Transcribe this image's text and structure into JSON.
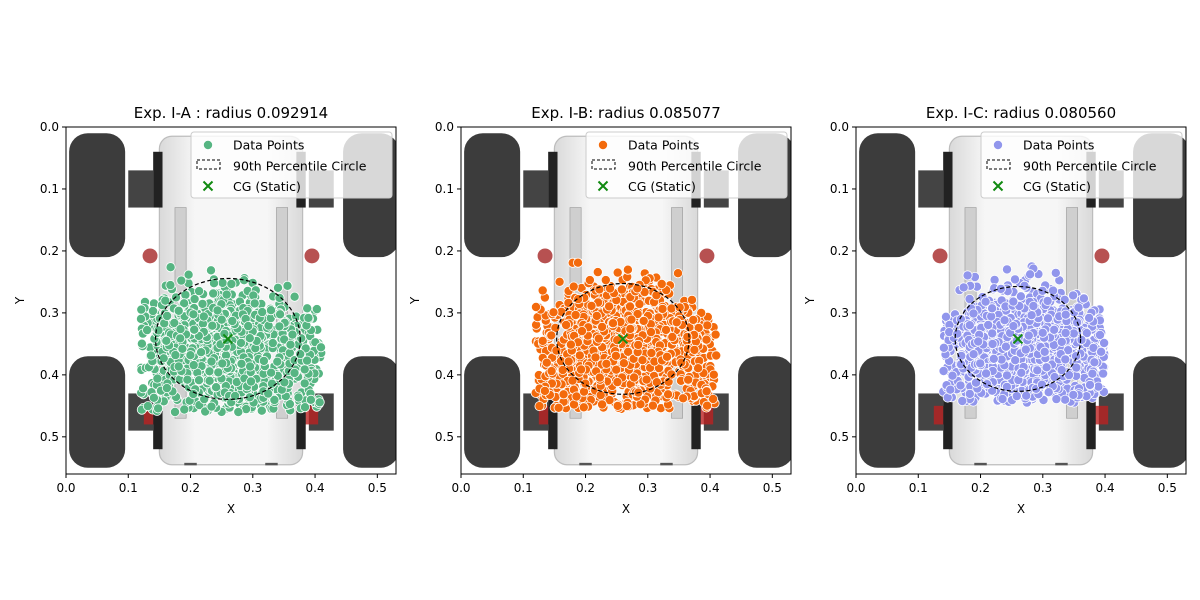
{
  "legend": {
    "data_points": "Data Points",
    "circle": "90th Percentile Circle",
    "cg": "CG (Static)"
  },
  "colors": {
    "cg_marker": "#118a11",
    "circle": "#000000"
  },
  "chart_data": [
    {
      "type": "scatter",
      "title": "Exp. I-A : radius 0.092914",
      "xlabel": "X",
      "ylabel": "Y",
      "xlim": [
        0.0,
        0.53
      ],
      "ylim": [
        0.56,
        0.0
      ],
      "y_inverted": true,
      "xticks": [
        "0.0",
        "0.1",
        "0.2",
        "0.3",
        "0.4",
        "0.5"
      ],
      "yticks": [
        "0.0",
        "0.1",
        "0.2",
        "0.3",
        "0.4",
        "0.5"
      ],
      "color": "#56b582",
      "radius": 0.092914,
      "cg": [
        0.26,
        0.342
      ],
      "cluster": {
        "x_range": [
          0.12,
          0.41
        ],
        "y_range": [
          0.22,
          0.46
        ],
        "center": [
          0.255,
          0.35
        ],
        "spread": [
          0.055,
          0.045
        ]
      },
      "legend_position": "upper right"
    },
    {
      "type": "scatter",
      "title": "Exp. I-B: radius 0.085077",
      "xlabel": "X",
      "ylabel": "Y",
      "xlim": [
        0.0,
        0.53
      ],
      "ylim": [
        0.56,
        0.0
      ],
      "y_inverted": true,
      "xticks": [
        "0.0",
        "0.1",
        "0.2",
        "0.3",
        "0.4",
        "0.5"
      ],
      "yticks": [
        "0.0",
        "0.1",
        "0.2",
        "0.3",
        "0.4",
        "0.5"
      ],
      "color": "#f36a0c",
      "radius": 0.085077,
      "cg": [
        0.26,
        0.342
      ],
      "cluster": {
        "x_range": [
          0.12,
          0.41
        ],
        "y_range": [
          0.215,
          0.455
        ],
        "center": [
          0.255,
          0.35
        ],
        "spread": [
          0.06,
          0.048
        ]
      },
      "legend_position": "upper right"
    },
    {
      "type": "scatter",
      "title": "Exp. I-C: radius 0.080560",
      "xlabel": "X",
      "ylabel": "Y",
      "xlim": [
        0.0,
        0.53
      ],
      "ylim": [
        0.56,
        0.0
      ],
      "y_inverted": true,
      "xticks": [
        "0.0",
        "0.1",
        "0.2",
        "0.3",
        "0.4",
        "0.5"
      ],
      "yticks": [
        "0.0",
        "0.1",
        "0.2",
        "0.3",
        "0.4",
        "0.5"
      ],
      "color": "#9196ec",
      "radius": 0.08056,
      "cg": [
        0.26,
        0.342
      ],
      "cluster": {
        "x_range": [
          0.14,
          0.4
        ],
        "y_range": [
          0.225,
          0.445
        ],
        "center": [
          0.265,
          0.345
        ],
        "spread": [
          0.055,
          0.042
        ]
      },
      "legend_position": "upper right"
    }
  ]
}
